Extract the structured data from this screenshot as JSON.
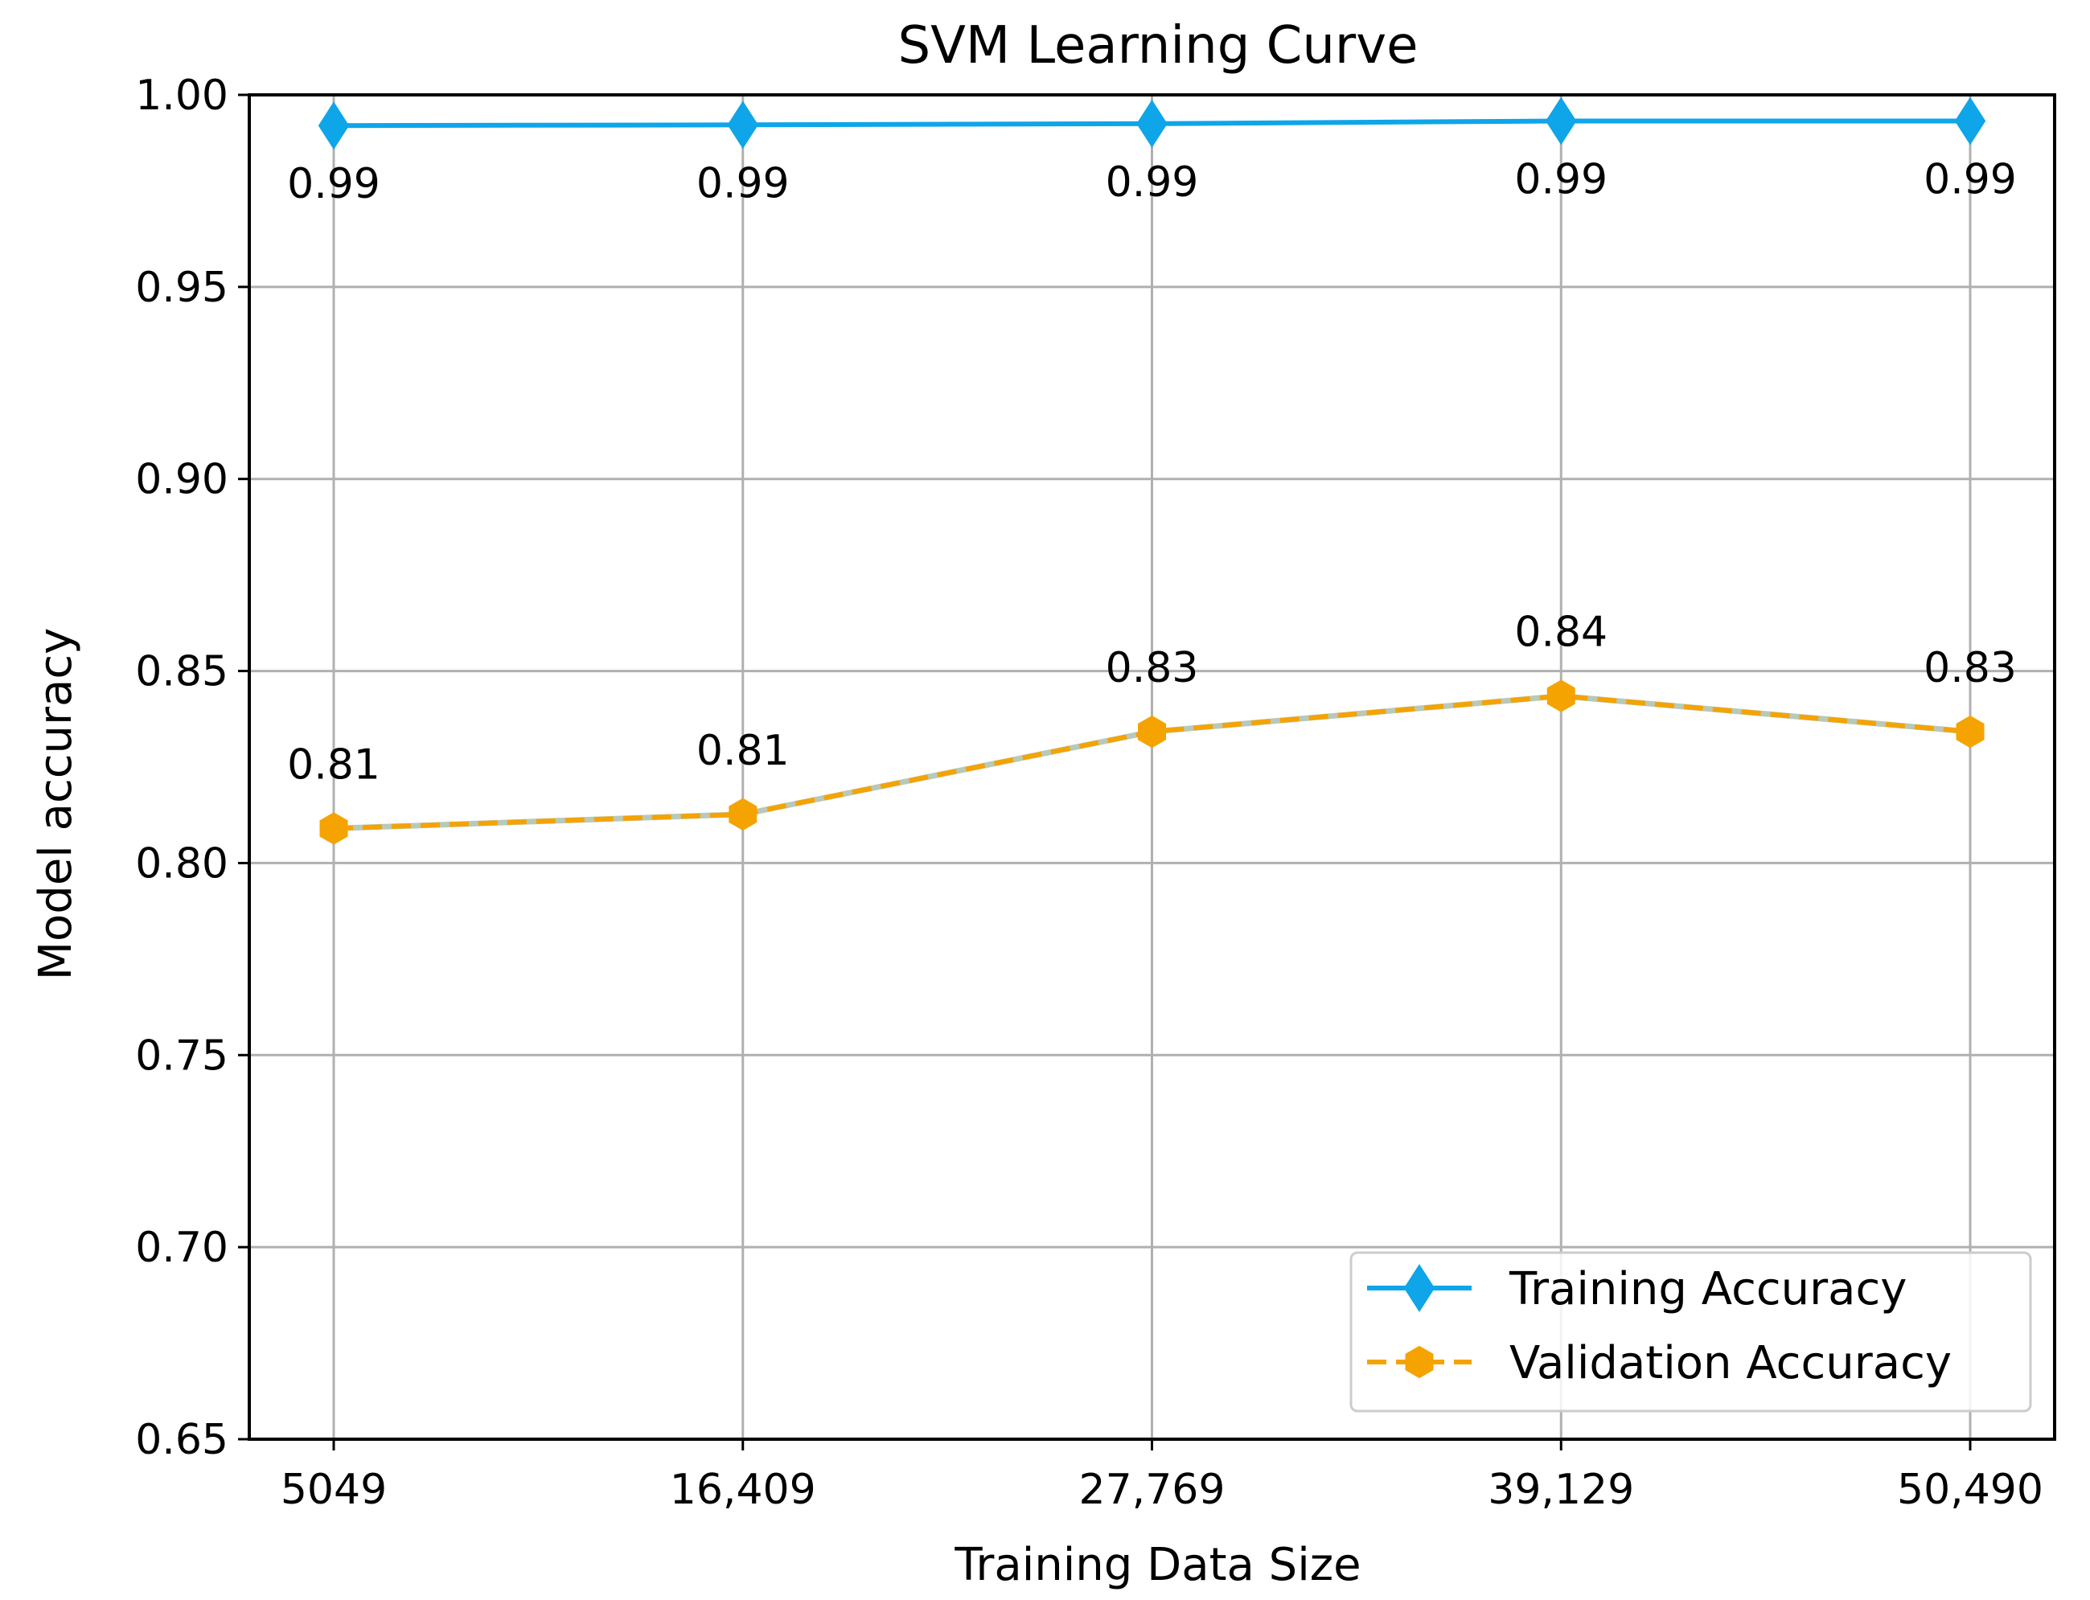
{
  "chart_data": {
    "type": "line",
    "title": "SVM Learning Curve",
    "xlabel": "Training Data Size",
    "ylabel": "Model accuracy",
    "categories": [
      "5049",
      "16,409",
      "27,769",
      "39,129",
      "50,490"
    ],
    "x": [
      5049,
      16409,
      27769,
      39129,
      50490
    ],
    "ylim": [
      0.65,
      1.0
    ],
    "yticks": [
      "0.65",
      "0.70",
      "0.75",
      "0.80",
      "0.85",
      "0.90",
      "0.95",
      "1.00"
    ],
    "grid": true,
    "legend_position": "bottom-right",
    "series": [
      {
        "name": "Training Accuracy",
        "values": [
          0.992,
          0.9922,
          0.9925,
          0.9932,
          0.9932
        ],
        "labels": [
          "0.99",
          "0.99",
          "0.99",
          "0.99",
          "0.99"
        ],
        "color": "#0ea5e9",
        "linestyle": "solid",
        "marker": "diamond"
      },
      {
        "name": "Validation Accuracy",
        "values": [
          0.809,
          0.8127,
          0.8342,
          0.8435,
          0.8342
        ],
        "labels": [
          "0.81",
          "0.81",
          "0.83",
          "0.84",
          "0.83"
        ],
        "color": "#f5a300",
        "linestyle": "dashed",
        "marker": "hexagon"
      }
    ]
  }
}
